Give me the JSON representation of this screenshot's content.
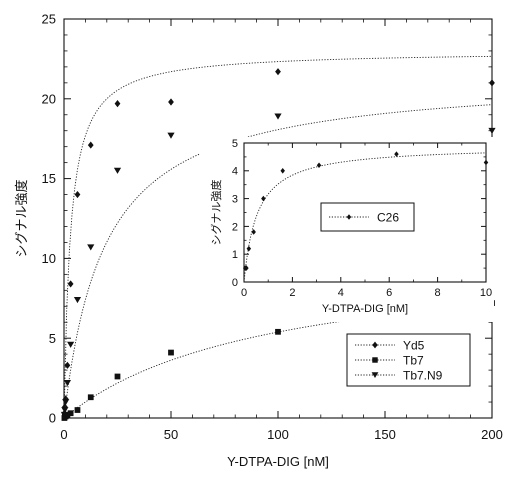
{
  "chart_data": [
    {
      "type": "scatter",
      "xlabel": "Y-DTPA-DIG  [nM]",
      "ylabel": "シグナル強度",
      "xlim": [
        0,
        200
      ],
      "ylim": [
        0,
        25
      ],
      "x_ticks": [
        0,
        50,
        100,
        150,
        200
      ],
      "y_ticks": [
        0,
        5,
        10,
        15,
        20,
        25
      ],
      "grid": false,
      "legend_position": "bottom-right",
      "fit_lines": "dotted saturation curves",
      "series": [
        {
          "name": "Yd5",
          "marker": "diamond",
          "points": [
            [
              0.2,
              0.3
            ],
            [
              0.4,
              0.7
            ],
            [
              0.8,
              1.2
            ],
            [
              1.6,
              3.3
            ],
            [
              3.1,
              8.4
            ],
            [
              6.3,
              14.0
            ],
            [
              12.5,
              17.1
            ],
            [
              25,
              19.7
            ],
            [
              50,
              19.8
            ],
            [
              100,
              21.7
            ],
            [
              200,
              21.0
            ]
          ],
          "fit": {
            "bmax": 23.0,
            "kd": 3.0
          }
        },
        {
          "name": "Tb7",
          "marker": "square",
          "points": [
            [
              0.2,
              0.0
            ],
            [
              0.4,
              0.1
            ],
            [
              0.8,
              0.1
            ],
            [
              1.6,
              0.2
            ],
            [
              3.1,
              0.3
            ],
            [
              6.3,
              0.5
            ],
            [
              12.5,
              1.3
            ],
            [
              25,
              2.6
            ],
            [
              50,
              4.1
            ],
            [
              100,
              5.4
            ],
            [
              200,
              7.2
            ]
          ],
          "fit": {
            "bmax": 10.5,
            "kd": 95
          }
        },
        {
          "name": "Tb7.N9",
          "marker": "triangle-down",
          "points": [
            [
              0.2,
              0.2
            ],
            [
              0.4,
              0.5
            ],
            [
              0.8,
              1.0
            ],
            [
              1.6,
              2.2
            ],
            [
              3.1,
              4.6
            ],
            [
              6.3,
              7.4
            ],
            [
              12.5,
              10.7
            ],
            [
              25,
              15.5
            ],
            [
              50,
              17.7
            ],
            [
              100,
              18.9
            ],
            [
              200,
              18.0
            ]
          ],
          "fit": {
            "bmax": 21.5,
            "kd": 19
          }
        }
      ]
    },
    {
      "type": "scatter",
      "xlabel": "Y-DTPA-DIG  [nM]",
      "ylabel": "シグナル強度",
      "xlim": [
        0,
        10
      ],
      "ylim": [
        0,
        5
      ],
      "x_ticks": [
        0,
        2,
        4,
        6,
        8,
        10
      ],
      "y_ticks": [
        0,
        1,
        2,
        3,
        4,
        5
      ],
      "grid": false,
      "legend_position": "center",
      "series": [
        {
          "name": "C26",
          "marker": "diamond",
          "points": [
            [
              0.05,
              0.5
            ],
            [
              0.1,
              0.5
            ],
            [
              0.2,
              1.2
            ],
            [
              0.4,
              1.8
            ],
            [
              0.8,
              3.0
            ],
            [
              1.6,
              4.0
            ],
            [
              3.1,
              4.2
            ],
            [
              6.3,
              4.6
            ],
            [
              10,
              4.3
            ]
          ],
          "fit": {
            "bmax": 4.9,
            "kd": 0.55
          }
        }
      ]
    }
  ]
}
